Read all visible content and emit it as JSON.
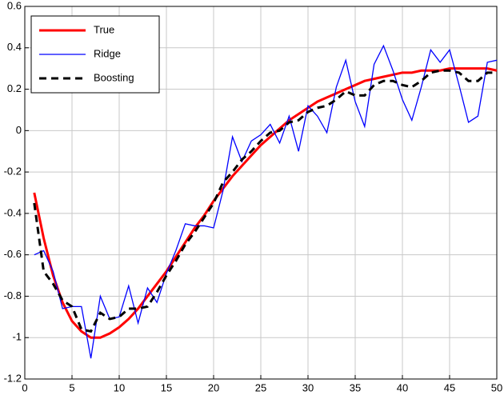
{
  "chart_data": {
    "type": "line",
    "x": [
      1,
      2,
      3,
      4,
      5,
      6,
      7,
      8,
      9,
      10,
      11,
      12,
      13,
      14,
      15,
      16,
      17,
      18,
      19,
      20,
      21,
      22,
      23,
      24,
      25,
      26,
      27,
      28,
      29,
      30,
      31,
      32,
      33,
      34,
      35,
      36,
      37,
      38,
      39,
      40,
      41,
      42,
      43,
      44,
      45,
      46,
      47,
      48,
      49,
      50
    ],
    "series": [
      {
        "name": "True",
        "color": "#ff0000",
        "width": 3,
        "dash": "solid",
        "values": [
          -0.3,
          -0.52,
          -0.7,
          -0.83,
          -0.92,
          -0.97,
          -1.0,
          -1.0,
          -0.98,
          -0.95,
          -0.91,
          -0.86,
          -0.8,
          -0.74,
          -0.68,
          -0.61,
          -0.54,
          -0.47,
          -0.41,
          -0.34,
          -0.28,
          -0.22,
          -0.17,
          -0.12,
          -0.07,
          -0.03,
          0.01,
          0.05,
          0.08,
          0.11,
          0.14,
          0.16,
          0.18,
          0.2,
          0.22,
          0.24,
          0.25,
          0.26,
          0.27,
          0.28,
          0.28,
          0.29,
          0.29,
          0.29,
          0.3,
          0.3,
          0.3,
          0.3,
          0.3,
          0.29
        ]
      },
      {
        "name": "Ridge",
        "color": "#0000ff",
        "width": 1.3,
        "dash": "solid",
        "values": [
          -0.6,
          -0.58,
          -0.68,
          -0.86,
          -0.85,
          -0.85,
          -1.1,
          -0.8,
          -0.91,
          -0.9,
          -0.75,
          -0.93,
          -0.76,
          -0.83,
          -0.69,
          -0.58,
          -0.45,
          -0.46,
          -0.46,
          -0.47,
          -0.29,
          -0.03,
          -0.15,
          -0.05,
          -0.02,
          0.03,
          -0.06,
          0.07,
          -0.1,
          0.12,
          0.07,
          -0.01,
          0.21,
          0.34,
          0.14,
          0.02,
          0.32,
          0.41,
          0.29,
          0.15,
          0.05,
          0.21,
          0.39,
          0.33,
          0.39,
          0.22,
          0.04,
          0.07,
          0.33,
          0.34
        ]
      },
      {
        "name": "Boosting",
        "color": "#000000",
        "width": 3,
        "dash": "dashed",
        "values": [
          -0.35,
          -0.68,
          -0.74,
          -0.82,
          -0.85,
          -0.96,
          -0.97,
          -0.88,
          -0.91,
          -0.9,
          -0.86,
          -0.86,
          -0.85,
          -0.78,
          -0.7,
          -0.63,
          -0.55,
          -0.49,
          -0.42,
          -0.35,
          -0.25,
          -0.2,
          -0.14,
          -0.1,
          -0.05,
          -0.01,
          0.0,
          0.04,
          0.05,
          0.09,
          0.11,
          0.12,
          0.15,
          0.19,
          0.17,
          0.17,
          0.22,
          0.24,
          0.24,
          0.22,
          0.21,
          0.24,
          0.28,
          0.29,
          0.29,
          0.28,
          0.24,
          0.24,
          0.28,
          0.28
        ]
      }
    ],
    "xlim": [
      0,
      50
    ],
    "ylim": [
      -1.2,
      0.6
    ],
    "xticks": [
      0,
      5,
      10,
      15,
      20,
      25,
      30,
      35,
      40,
      45,
      50
    ],
    "yticks": [
      -1.2,
      -1,
      -0.8,
      -0.6,
      -0.4,
      -0.2,
      0,
      0.2,
      0.4,
      0.6
    ],
    "grid": true,
    "legend": "upper left"
  }
}
